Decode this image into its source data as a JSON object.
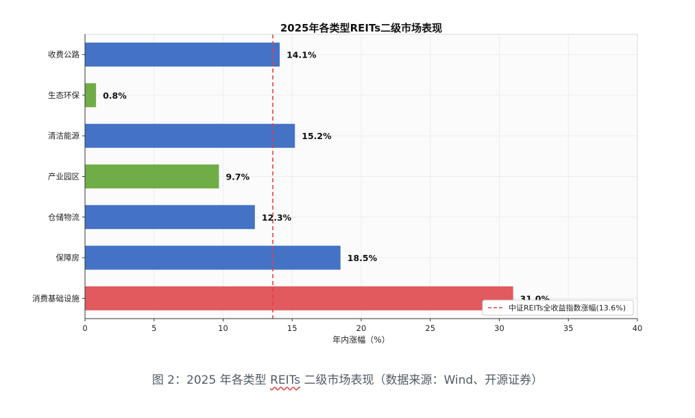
{
  "chart_data": {
    "type": "bar",
    "orientation": "horizontal",
    "title": "2025年各类型REITs二级市场表现",
    "xlabel": "年内涨幅（%）",
    "ylabel": "",
    "xlim": [
      0,
      40
    ],
    "xticks": [
      "0",
      "5",
      "10",
      "15",
      "20",
      "25",
      "30",
      "35",
      "40"
    ],
    "grid": true,
    "categories": [
      "收费公路",
      "生态环保",
      "清洁能源",
      "产业园区",
      "仓储物流",
      "保障房",
      "消费基础设施"
    ],
    "values": [
      14.1,
      0.8,
      15.2,
      9.7,
      12.3,
      18.5,
      31.0
    ],
    "value_labels": [
      "14.1%",
      "0.8%",
      "15.2%",
      "9.7%",
      "12.3%",
      "18.5%",
      "31.0%"
    ],
    "bar_colors": [
      "#4472c4",
      "#70ad47",
      "#4472c4",
      "#70ad47",
      "#4472c4",
      "#4472c4",
      "#e05a5e"
    ],
    "reference_line": {
      "value": 13.6,
      "label": "中证REITs全收益指数涨幅(13.6%)",
      "color": "#e8413c",
      "style": "dashed"
    },
    "legend_placement": "bottom-right"
  },
  "caption": {
    "prefix": "图 2：2025 年各类型 ",
    "underlined": "REITs",
    "suffix": " 二级市场表现（数据来源：Wind、开源证券）"
  }
}
